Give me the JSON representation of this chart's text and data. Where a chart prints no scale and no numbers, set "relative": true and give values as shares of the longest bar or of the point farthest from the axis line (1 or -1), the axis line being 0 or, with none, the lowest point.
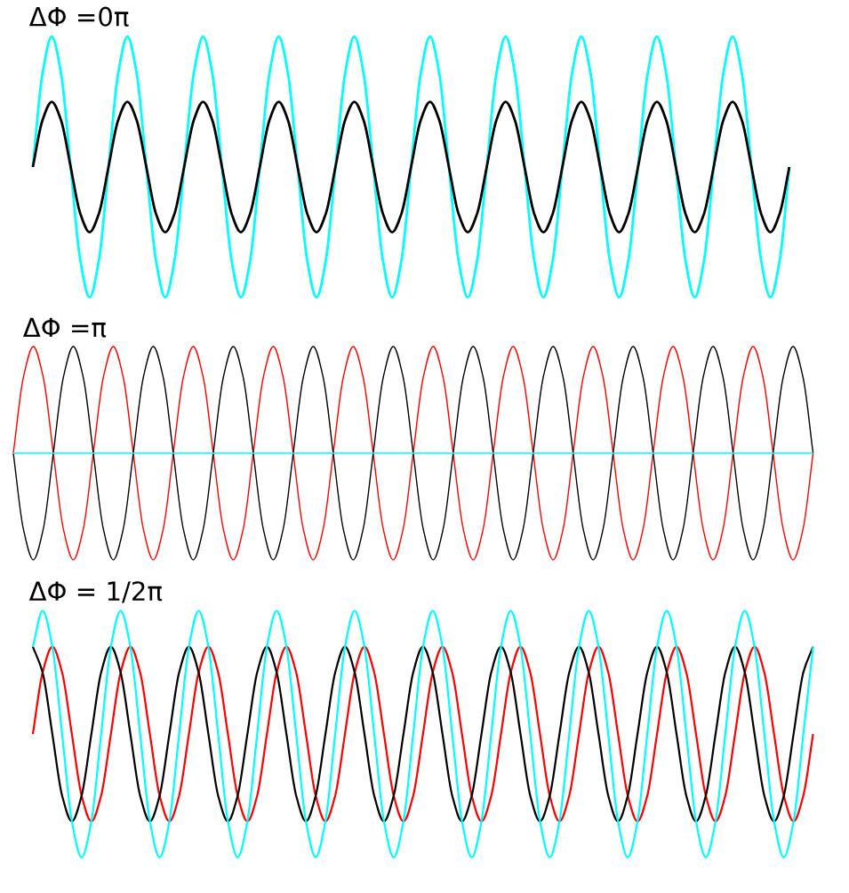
{
  "chart_data": [
    {
      "type": "line",
      "title": "ΔΦ =0π",
      "relative": true,
      "categories": [
        null,
        null,
        null,
        null,
        null,
        null,
        null,
        null,
        null,
        null,
        null,
        null,
        null,
        null,
        null,
        null,
        null,
        null,
        null,
        null,
        null,
        null,
        null,
        null,
        null,
        null,
        null,
        null,
        null,
        null,
        null,
        null,
        null,
        null,
        null,
        null,
        null,
        null,
        null,
        null,
        null,
        null,
        null,
        null,
        null,
        null,
        null,
        null,
        null,
        null,
        null,
        null,
        null,
        null,
        null,
        null,
        null,
        null,
        null,
        null,
        null,
        null,
        null,
        null,
        null,
        null,
        null,
        null,
        null,
        null,
        null,
        null,
        null,
        null,
        null,
        null,
        null,
        null,
        null,
        null,
        null
      ],
      "series": [
        {
          "color": "#00ffff",
          "values": [
            0.5,
            0.854,
            1,
            0.854,
            0.5,
            0.146,
            0,
            0.146,
            0.5,
            0.854,
            1,
            0.854,
            0.5,
            0.146,
            0,
            0.146,
            0.5,
            0.854,
            1,
            0.854,
            0.5,
            0.146,
            0,
            0.146,
            0.5,
            0.854,
            1,
            0.854,
            0.5,
            0.146,
            0,
            0.146,
            0.5,
            0.854,
            1,
            0.854,
            0.5,
            0.146,
            0,
            0.146,
            0.5,
            0.854,
            1,
            0.854,
            0.5,
            0.146,
            0,
            0.146,
            0.5,
            0.854,
            1,
            0.854,
            0.5,
            0.146,
            0,
            0.146,
            0.5,
            0.854,
            1,
            0.854,
            0.5,
            0.146,
            0,
            0.146,
            0.5,
            0.854,
            1,
            0.854,
            0.5,
            0.146,
            0,
            0.146,
            0.5,
            0.854,
            1,
            0.854,
            0.5,
            0.146,
            0,
            0.146,
            0.5
          ]
        },
        {
          "color": "#000000",
          "values": [
            0.5,
            0.677,
            0.75,
            0.677,
            0.5,
            0.323,
            0.25,
            0.323,
            0.5,
            0.677,
            0.75,
            0.677,
            0.5,
            0.323,
            0.25,
            0.323,
            0.5,
            0.677,
            0.75,
            0.677,
            0.5,
            0.323,
            0.25,
            0.323,
            0.5,
            0.677,
            0.75,
            0.677,
            0.5,
            0.323,
            0.25,
            0.323,
            0.5,
            0.677,
            0.75,
            0.677,
            0.5,
            0.323,
            0.25,
            0.323,
            0.5,
            0.677,
            0.75,
            0.677,
            0.5,
            0.323,
            0.25,
            0.323,
            0.5,
            0.677,
            0.75,
            0.677,
            0.5,
            0.323,
            0.25,
            0.323,
            0.5,
            0.677,
            0.75,
            0.677,
            0.5,
            0.323,
            0.25,
            0.323,
            0.5,
            0.677,
            0.75,
            0.677,
            0.5,
            0.323,
            0.25,
            0.323,
            0.5,
            0.677,
            0.75,
            0.677,
            0.5,
            0.323,
            0.25,
            0.323,
            0.5
          ]
        }
      ]
    },
    {
      "type": "line",
      "title": "ΔΦ =π",
      "relative": true,
      "categories": [
        null,
        null,
        null,
        null,
        null,
        null,
        null,
        null,
        null,
        null,
        null,
        null,
        null,
        null,
        null,
        null,
        null,
        null,
        null,
        null,
        null,
        null,
        null,
        null,
        null,
        null,
        null,
        null,
        null,
        null,
        null,
        null,
        null,
        null,
        null,
        null,
        null,
        null,
        null,
        null,
        null,
        null,
        null,
        null,
        null,
        null,
        null,
        null,
        null,
        null,
        null,
        null,
        null,
        null,
        null,
        null,
        null,
        null,
        null,
        null,
        null,
        null,
        null,
        null,
        null,
        null,
        null,
        null,
        null,
        null,
        null,
        null,
        null,
        null,
        null,
        null,
        null,
        null,
        null,
        null,
        null
      ],
      "series": [
        {
          "color": "#ff0000",
          "values": [
            0.5,
            0.854,
            1,
            0.854,
            0.5,
            0.146,
            0,
            0.146,
            0.5,
            0.854,
            1,
            0.854,
            0.5,
            0.146,
            0,
            0.146,
            0.5,
            0.854,
            1,
            0.854,
            0.5,
            0.146,
            0,
            0.146,
            0.5,
            0.854,
            1,
            0.854,
            0.5,
            0.146,
            0,
            0.146,
            0.5,
            0.854,
            1,
            0.854,
            0.5,
            0.146,
            0,
            0.146,
            0.5,
            0.854,
            1,
            0.854,
            0.5,
            0.146,
            0,
            0.146,
            0.5,
            0.854,
            1,
            0.854,
            0.5,
            0.146,
            0,
            0.146,
            0.5,
            0.854,
            1,
            0.854,
            0.5,
            0.146,
            0,
            0.146,
            0.5,
            0.854,
            1,
            0.854,
            0.5,
            0.146,
            0,
            0.146,
            0.5,
            0.854,
            1,
            0.854,
            0.5,
            0.146,
            0,
            0.146,
            0.5
          ]
        },
        {
          "color": "#000000",
          "values": [
            0.5,
            0.146,
            0,
            0.146,
            0.5,
            0.854,
            1,
            0.854,
            0.5,
            0.146,
            0,
            0.146,
            0.5,
            0.854,
            1,
            0.854,
            0.5,
            0.146,
            0,
            0.146,
            0.5,
            0.854,
            1,
            0.854,
            0.5,
            0.146,
            0,
            0.146,
            0.5,
            0.854,
            1,
            0.854,
            0.5,
            0.146,
            0,
            0.146,
            0.5,
            0.854,
            1,
            0.854,
            0.5,
            0.146,
            0,
            0.146,
            0.5,
            0.854,
            1,
            0.854,
            0.5,
            0.146,
            0,
            0.146,
            0.5,
            0.854,
            1,
            0.854,
            0.5,
            0.146,
            0,
            0.146,
            0.5,
            0.854,
            1,
            0.854,
            0.5,
            0.146,
            0,
            0.146,
            0.5,
            0.854,
            1,
            0.854,
            0.5,
            0.146,
            0,
            0.146,
            0.5,
            0.854,
            1,
            0.854,
            0.5
          ]
        },
        {
          "color": "#00ffff",
          "values": [
            0.5,
            0.5,
            0.5,
            0.5,
            0.5,
            0.5,
            0.5,
            0.5,
            0.5,
            0.5,
            0.5,
            0.5,
            0.5,
            0.5,
            0.5,
            0.5,
            0.5,
            0.5,
            0.5,
            0.5,
            0.5,
            0.5,
            0.5,
            0.5,
            0.5,
            0.5,
            0.5,
            0.5,
            0.5,
            0.5,
            0.5,
            0.5,
            0.5,
            0.5,
            0.5,
            0.5,
            0.5,
            0.5,
            0.5,
            0.5,
            0.5,
            0.5,
            0.5,
            0.5,
            0.5,
            0.5,
            0.5,
            0.5,
            0.5,
            0.5,
            0.5,
            0.5,
            0.5,
            0.5,
            0.5,
            0.5,
            0.5,
            0.5,
            0.5,
            0.5,
            0.5,
            0.5,
            0.5,
            0.5,
            0.5,
            0.5,
            0.5,
            0.5,
            0.5,
            0.5,
            0.5,
            0.5,
            0.5,
            0.5,
            0.5,
            0.5,
            0.5,
            0.5,
            0.5,
            0.5,
            0.5
          ]
        }
      ]
    },
    {
      "type": "line",
      "title": "ΔΦ = 1/2π",
      "relative": true,
      "categories": [
        null,
        null,
        null,
        null,
        null,
        null,
        null,
        null,
        null,
        null,
        null,
        null,
        null,
        null,
        null,
        null,
        null,
        null,
        null,
        null,
        null,
        null,
        null,
        null,
        null,
        null,
        null,
        null,
        null,
        null,
        null,
        null,
        null,
        null,
        null,
        null,
        null,
        null,
        null,
        null,
        null,
        null,
        null,
        null,
        null,
        null,
        null,
        null,
        null,
        null,
        null,
        null,
        null,
        null,
        null,
        null,
        null,
        null,
        null,
        null,
        null,
        null,
        null,
        null,
        null,
        null,
        null,
        null,
        null,
        null,
        null,
        null,
        null,
        null,
        null,
        null,
        null,
        null,
        null,
        null,
        null
      ],
      "series": [
        {
          "color": "#ff0000",
          "values": [
            0.5,
            0.75,
            0.854,
            0.75,
            0.5,
            0.25,
            0.146,
            0.25,
            0.5,
            0.75,
            0.854,
            0.75,
            0.5,
            0.25,
            0.146,
            0.25,
            0.5,
            0.75,
            0.854,
            0.75,
            0.5,
            0.25,
            0.146,
            0.25,
            0.5,
            0.75,
            0.854,
            0.75,
            0.5,
            0.25,
            0.146,
            0.25,
            0.5,
            0.75,
            0.854,
            0.75,
            0.5,
            0.25,
            0.146,
            0.25,
            0.5,
            0.75,
            0.854,
            0.75,
            0.5,
            0.25,
            0.146,
            0.25,
            0.5,
            0.75,
            0.854,
            0.75,
            0.5,
            0.25,
            0.146,
            0.25,
            0.5,
            0.75,
            0.854,
            0.75,
            0.5,
            0.25,
            0.146,
            0.25,
            0.5,
            0.75,
            0.854,
            0.75,
            0.5,
            0.25,
            0.146,
            0.25,
            0.5,
            0.75,
            0.854,
            0.75,
            0.5,
            0.25,
            0.146,
            0.25,
            0.5
          ]
        },
        {
          "color": "#000000",
          "values": [
            0.854,
            0.75,
            0.5,
            0.25,
            0.146,
            0.25,
            0.5,
            0.75,
            0.854,
            0.75,
            0.5,
            0.25,
            0.146,
            0.25,
            0.5,
            0.75,
            0.854,
            0.75,
            0.5,
            0.25,
            0.146,
            0.25,
            0.5,
            0.75,
            0.854,
            0.75,
            0.5,
            0.25,
            0.146,
            0.25,
            0.5,
            0.75,
            0.854,
            0.75,
            0.5,
            0.25,
            0.146,
            0.25,
            0.5,
            0.75,
            0.854,
            0.75,
            0.5,
            0.25,
            0.146,
            0.25,
            0.5,
            0.75,
            0.854,
            0.75,
            0.5,
            0.25,
            0.146,
            0.25,
            0.5,
            0.75,
            0.854,
            0.75,
            0.5,
            0.25,
            0.146,
            0.25,
            0.5,
            0.75,
            0.854,
            0.75,
            0.5,
            0.25,
            0.146,
            0.25,
            0.5,
            0.75,
            0.854,
            0.75,
            0.5,
            0.25,
            0.146,
            0.25,
            0.5,
            0.75,
            0.854
          ]
        },
        {
          "color": "#00ffff",
          "values": [
            0.854,
            1,
            0.854,
            0.5,
            0.146,
            0,
            0.146,
            0.5,
            0.854,
            1,
            0.854,
            0.5,
            0.146,
            0,
            0.146,
            0.5,
            0.854,
            1,
            0.854,
            0.5,
            0.146,
            0,
            0.146,
            0.5,
            0.854,
            1,
            0.854,
            0.5,
            0.146,
            0,
            0.146,
            0.5,
            0.854,
            1,
            0.854,
            0.5,
            0.146,
            0,
            0.146,
            0.5,
            0.854,
            1,
            0.854,
            0.5,
            0.146,
            0,
            0.146,
            0.5,
            0.854,
            1,
            0.854,
            0.5,
            0.146,
            0,
            0.146,
            0.5,
            0.854,
            1,
            0.854,
            0.5,
            0.146,
            0,
            0.146,
            0.5,
            0.854,
            1,
            0.854,
            0.5,
            0.146,
            0,
            0.146,
            0.5,
            0.854,
            1,
            0.854,
            0.5,
            0.146,
            0,
            0.146,
            0.5,
            0.854
          ]
        }
      ]
    }
  ]
}
